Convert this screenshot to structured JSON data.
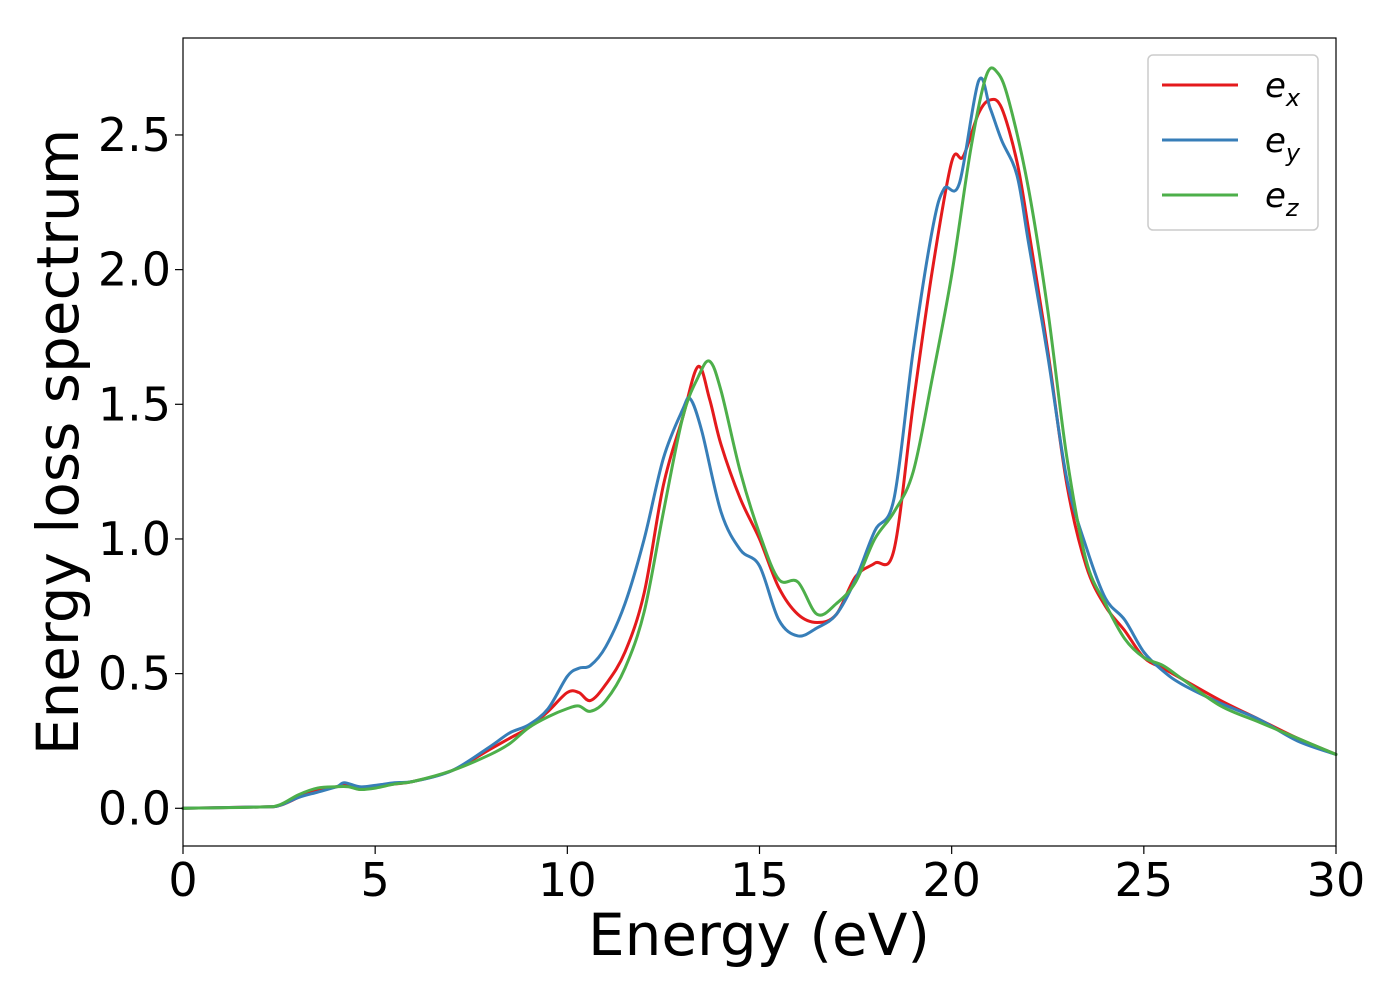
{
  "chart_data": {
    "type": "line",
    "xlabel": "Energy (eV)",
    "ylabel": "Energy loss spectrum",
    "xlim": [
      0,
      30
    ],
    "ylim": [
      -0.14,
      2.86
    ],
    "xticks": [
      "0",
      "5",
      "10",
      "15",
      "20",
      "25",
      "30"
    ],
    "yticks": [
      "0.0",
      "0.5",
      "1.0",
      "1.5",
      "2.0",
      "2.5"
    ],
    "grid": false,
    "legend": "top-right",
    "series": [
      {
        "name": "e_x",
        "label_main": "e",
        "label_sub": "x",
        "color": "#e41a1c",
        "x": [
          0,
          2,
          2.5,
          3,
          3.5,
          4,
          4.2,
          4.6,
          5,
          5.5,
          6,
          7,
          8,
          8.5,
          9,
          9.5,
          10,
          10.3,
          10.6,
          11,
          11.5,
          12,
          12.5,
          13,
          13.4,
          13.7,
          14,
          14.5,
          15,
          15.5,
          16,
          16.5,
          17,
          17.5,
          18,
          18.5,
          19,
          19.5,
          20,
          20.3,
          20.7,
          21,
          21.3,
          21.7,
          22,
          22.5,
          23,
          23.5,
          24,
          24.5,
          25,
          25.5,
          26,
          27,
          28,
          29,
          30
        ],
        "y": [
          0,
          0.005,
          0.01,
          0.04,
          0.07,
          0.08,
          0.09,
          0.07,
          0.08,
          0.09,
          0.1,
          0.14,
          0.22,
          0.26,
          0.3,
          0.36,
          0.43,
          0.43,
          0.4,
          0.46,
          0.58,
          0.8,
          1.2,
          1.45,
          1.64,
          1.52,
          1.35,
          1.15,
          1.0,
          0.82,
          0.72,
          0.69,
          0.72,
          0.86,
          0.91,
          0.96,
          1.5,
          2.0,
          2.4,
          2.42,
          2.58,
          2.63,
          2.6,
          2.4,
          2.15,
          1.7,
          1.2,
          0.9,
          0.75,
          0.66,
          0.56,
          0.52,
          0.48,
          0.4,
          0.33,
          0.26,
          0.2
        ]
      },
      {
        "name": "e_y",
        "label_main": "e",
        "label_sub": "y",
        "color": "#377eb8",
        "x": [
          0,
          2,
          2.5,
          3,
          3.5,
          4,
          4.2,
          4.6,
          5,
          5.5,
          6,
          7,
          8,
          8.5,
          9,
          9.5,
          10,
          10.3,
          10.6,
          11,
          11.5,
          12,
          12.5,
          13,
          13.2,
          13.5,
          14,
          14.5,
          15,
          15.5,
          16,
          16.5,
          17,
          17.5,
          18,
          18.5,
          19,
          19.5,
          19.8,
          20.2,
          20.7,
          21,
          21.3,
          21.7,
          22,
          22.5,
          23,
          23.5,
          24,
          24.5,
          25,
          25.5,
          26,
          27,
          28,
          29,
          30
        ],
        "y": [
          0,
          0.005,
          0.01,
          0.04,
          0.06,
          0.08,
          0.095,
          0.08,
          0.085,
          0.095,
          0.1,
          0.14,
          0.23,
          0.28,
          0.31,
          0.37,
          0.49,
          0.52,
          0.53,
          0.6,
          0.76,
          1.0,
          1.3,
          1.48,
          1.52,
          1.4,
          1.1,
          0.96,
          0.9,
          0.7,
          0.64,
          0.67,
          0.72,
          0.85,
          1.03,
          1.15,
          1.7,
          2.15,
          2.3,
          2.32,
          2.7,
          2.6,
          2.48,
          2.35,
          2.1,
          1.68,
          1.22,
          0.97,
          0.78,
          0.7,
          0.58,
          0.51,
          0.46,
          0.39,
          0.33,
          0.25,
          0.2
        ]
      },
      {
        "name": "e_z",
        "label_main": "e",
        "label_sub": "z",
        "color": "#4daf4a",
        "x": [
          0,
          2,
          2.5,
          3,
          3.5,
          4,
          4.3,
          4.6,
          5,
          5.5,
          6,
          7,
          8,
          8.5,
          9,
          9.5,
          10,
          10.3,
          10.6,
          11,
          11.5,
          12,
          12.5,
          13,
          13.4,
          13.7,
          14,
          14.5,
          15,
          15.5,
          16,
          16.5,
          17,
          17.5,
          18,
          18.5,
          19,
          19.5,
          20,
          20.5,
          20.9,
          21.2,
          21.5,
          22,
          22.5,
          23,
          23.5,
          24,
          24.5,
          25,
          25.5,
          26,
          27,
          28,
          29,
          30
        ],
        "y": [
          0,
          0.005,
          0.012,
          0.05,
          0.075,
          0.08,
          0.08,
          0.07,
          0.075,
          0.09,
          0.1,
          0.14,
          0.2,
          0.24,
          0.3,
          0.34,
          0.37,
          0.38,
          0.36,
          0.4,
          0.52,
          0.73,
          1.1,
          1.45,
          1.6,
          1.66,
          1.55,
          1.25,
          1.02,
          0.85,
          0.84,
          0.72,
          0.76,
          0.84,
          1.0,
          1.1,
          1.25,
          1.6,
          1.98,
          2.45,
          2.72,
          2.73,
          2.62,
          2.3,
          1.85,
          1.3,
          0.92,
          0.76,
          0.63,
          0.56,
          0.53,
          0.48,
          0.38,
          0.32,
          0.26,
          0.2
        ]
      }
    ]
  }
}
